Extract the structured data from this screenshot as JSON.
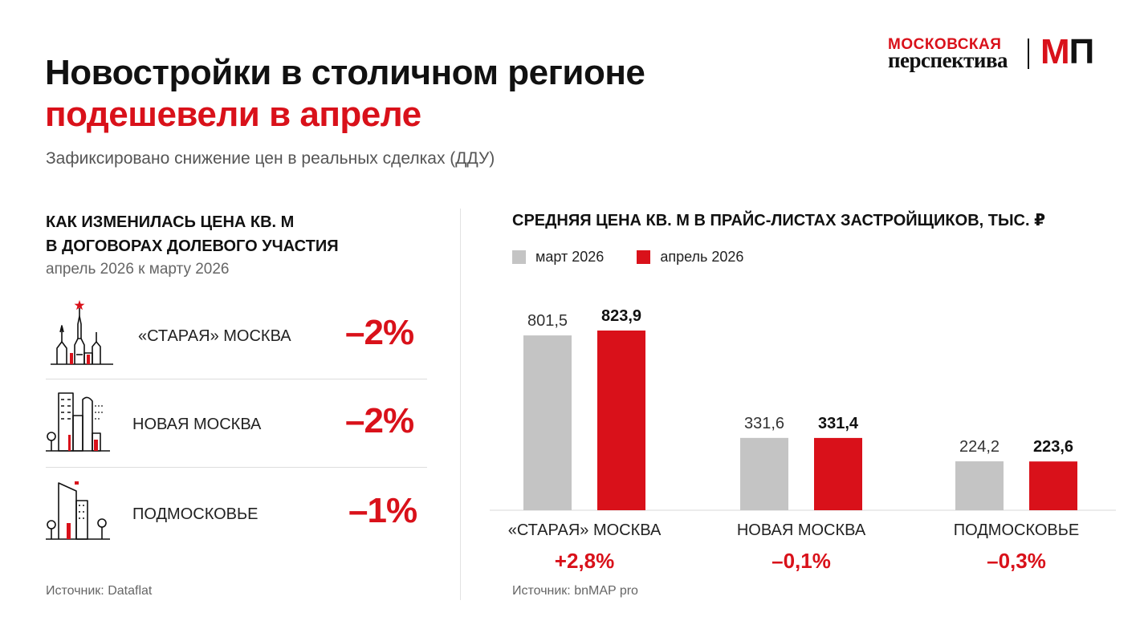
{
  "header": {
    "title_line1": "Новостройки в столичном регионе",
    "title_line2": "подешевели в апреле",
    "subtitle": "Зафиксировано снижение цен в реальных сделках (ДДУ)"
  },
  "logo": {
    "word1": "МОСКОВСКАЯ",
    "word2": "перспектива",
    "mark_m": "М",
    "mark_p": "П"
  },
  "left_panel": {
    "heading_line1": "КАК ИЗМЕНИЛАСЬ ЦЕНА КВ. М",
    "heading_line2": "В ДОГОВОРАХ ДОЛЕВОГО УЧАСТИЯ",
    "subheading": "апрель 2026 к марту 2026",
    "rows": [
      {
        "label": "«СТАРАЯ» МОСКВА",
        "change": "–2%",
        "icon": "kremlin-tower-icon"
      },
      {
        "label": "НОВАЯ МОСКВА",
        "change": "–2%",
        "icon": "city-buildings-icon"
      },
      {
        "label": "ПОДМОСКОВЬЕ",
        "change": "–1%",
        "icon": "suburb-buildings-icon"
      }
    ],
    "source": "Источник: Dataflat"
  },
  "right_panel": {
    "heading": "СРЕДНЯЯ ЦЕНА КВ. М  В ПРАЙС-ЛИСТАХ ЗАСТРОЙЩИКОВ, ТЫС. ₽",
    "legend": [
      "март 2026",
      "апрель 2026"
    ],
    "changes": [
      "+2,8%",
      "–0,1%",
      "–0,3%"
    ],
    "source": "Источник: bnMAP pro"
  },
  "colors": {
    "accent": "#d9111a",
    "march_bar": "#c4c4c4",
    "april_bar": "#d9111a",
    "text": "#111111",
    "muted": "#666666"
  },
  "chart_data": {
    "type": "bar",
    "categories": [
      "«СТАРАЯ» МОСКВА",
      "НОВАЯ МОСКВА",
      "ПОДМОСКОВЬЕ"
    ],
    "series": [
      {
        "name": "март 2026",
        "values": [
          801.5,
          331.6,
          224.2
        ],
        "labels": [
          "801,5",
          "331,6",
          "224,2"
        ]
      },
      {
        "name": "апрель 2026",
        "values": [
          823.9,
          331.4,
          223.6
        ],
        "labels": [
          "823,9",
          "331,4",
          "223,6"
        ]
      }
    ],
    "ylim": [
      0,
      823.9
    ],
    "grid": false,
    "legend_position": "top-left"
  }
}
